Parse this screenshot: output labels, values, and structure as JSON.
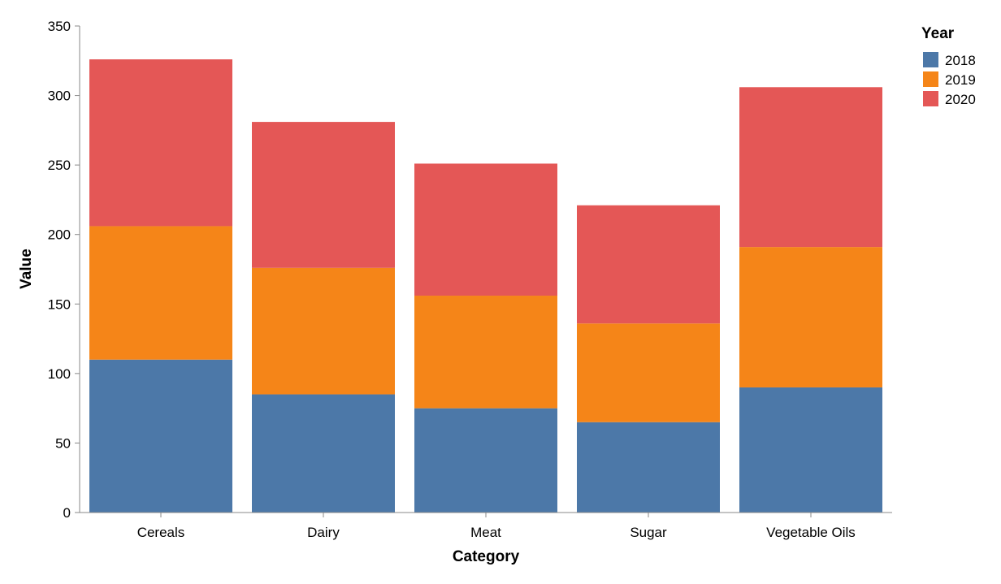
{
  "chart_data": {
    "type": "bar",
    "stacked": true,
    "categories": [
      "Cereals",
      "Dairy",
      "Meat",
      "Sugar",
      "Vegetable Oils"
    ],
    "series": [
      {
        "name": "2018",
        "color": "#4c78a8",
        "values": [
          110,
          85,
          75,
          65,
          90
        ]
      },
      {
        "name": "2019",
        "color": "#f58518",
        "values": [
          96,
          91,
          81,
          71,
          101
        ]
      },
      {
        "name": "2020",
        "color": "#e45756",
        "values": [
          120,
          105,
          95,
          85,
          115
        ]
      }
    ],
    "xlabel": "Category",
    "ylabel": "Value",
    "ylim": [
      0,
      350
    ],
    "yticks": [
      0,
      50,
      100,
      150,
      200,
      250,
      300,
      350
    ],
    "grid": false,
    "legend": {
      "title": "Year",
      "placement": "top-right"
    }
  }
}
